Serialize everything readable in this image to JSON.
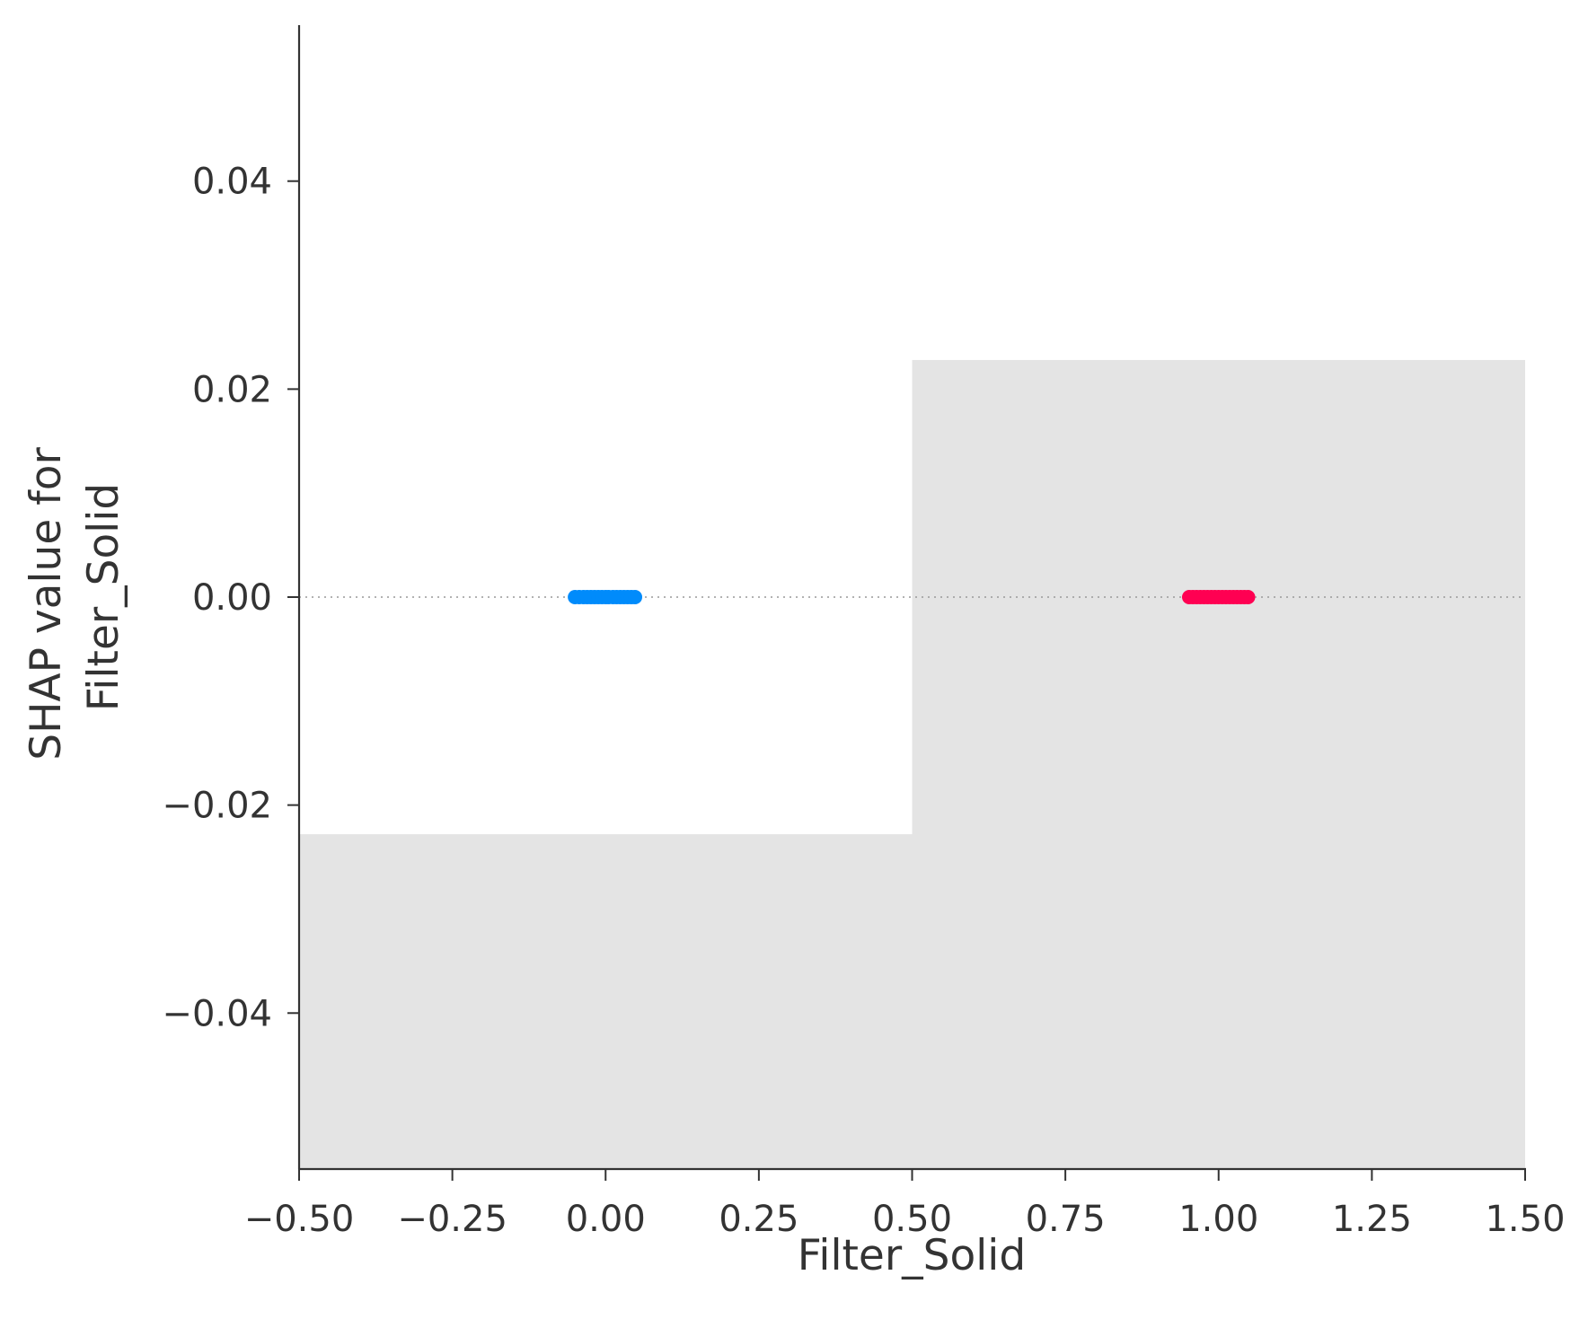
{
  "chart_data": {
    "type": "scatter",
    "title": "",
    "xlabel": "Filter_Solid",
    "ylabel": [
      "SHAP value for",
      "Filter_Solid"
    ],
    "xlim": [
      -0.5,
      1.5
    ],
    "ylim": [
      -0.055,
      0.055
    ],
    "x_ticks": [
      -0.5,
      -0.25,
      0.0,
      0.25,
      0.5,
      0.75,
      1.0,
      1.25,
      1.5
    ],
    "x_tick_labels": [
      "−0.50",
      "−0.25",
      "0.00",
      "0.25",
      "0.50",
      "0.75",
      "1.00",
      "1.25",
      "1.50"
    ],
    "y_ticks": [
      -0.04,
      -0.02,
      0.0,
      0.02,
      0.04
    ],
    "y_tick_labels": [
      "−0.04",
      "−0.02",
      "0.00",
      "0.02",
      "0.04"
    ],
    "grid": false,
    "zero_line": {
      "y": 0.0,
      "style": "dotted",
      "color": "#999999"
    },
    "background_histogram": {
      "color": "#e4e4e4",
      "bins": [
        {
          "x0": -0.5,
          "x1": 0.5,
          "top": -0.0228
        },
        {
          "x0": 0.5,
          "x1": 1.5,
          "top": 0.0228
        }
      ]
    },
    "series": [
      {
        "color": "#008bfb",
        "points": [
          [
            -0.05,
            0
          ],
          [
            -0.043,
            0
          ],
          [
            -0.036,
            0
          ],
          [
            -0.03,
            0
          ],
          [
            -0.024,
            0
          ],
          [
            -0.018,
            0
          ],
          [
            -0.012,
            0
          ],
          [
            -0.006,
            0
          ],
          [
            0.0,
            0
          ],
          [
            0.005,
            0
          ],
          [
            0.012,
            0
          ],
          [
            0.018,
            0
          ],
          [
            0.024,
            0
          ],
          [
            0.03,
            0
          ],
          [
            0.036,
            0
          ],
          [
            0.042,
            0
          ],
          [
            0.048,
            0
          ]
        ]
      },
      {
        "color": "#ff0052",
        "points": [
          [
            0.952,
            0
          ],
          [
            0.958,
            0
          ],
          [
            0.964,
            0
          ],
          [
            0.97,
            0
          ],
          [
            0.976,
            0
          ],
          [
            0.982,
            0
          ],
          [
            0.988,
            0
          ],
          [
            0.994,
            0
          ],
          [
            1.0,
            0
          ],
          [
            1.006,
            0
          ],
          [
            1.012,
            0
          ],
          [
            1.018,
            0
          ],
          [
            1.024,
            0
          ],
          [
            1.03,
            0
          ],
          [
            1.036,
            0
          ],
          [
            1.042,
            0
          ],
          [
            1.048,
            0
          ]
        ]
      }
    ]
  }
}
